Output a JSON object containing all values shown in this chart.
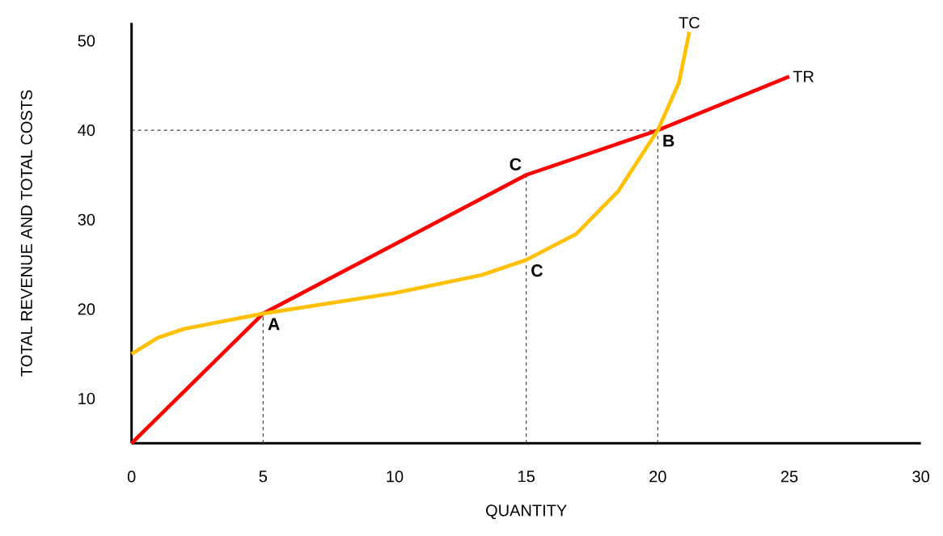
{
  "chart_data": {
    "type": "line",
    "xlabel": "QUANTITY",
    "ylabel": "TOTAL REVENUE AND TOTAL COSTS",
    "xlim": [
      0,
      30
    ],
    "ylim": [
      5,
      52
    ],
    "xticks": [
      0,
      5,
      10,
      15,
      20,
      25,
      30
    ],
    "yticks": [
      10,
      20,
      30,
      40,
      50
    ],
    "grid": false,
    "marker": "none",
    "line_style": "solid",
    "series": [
      {
        "name": "TR",
        "color": "#ff0000",
        "x": [
          0,
          5,
          15,
          20,
          25
        ],
        "values": [
          5,
          19.5,
          35,
          40,
          46
        ]
      },
      {
        "name": "TC",
        "color": "#ffc000",
        "x": [
          0,
          1,
          2,
          5,
          10,
          13.3,
          15,
          16.9,
          18.5,
          20,
          20.8,
          21.2
        ],
        "values": [
          15,
          16.8,
          17.8,
          19.5,
          21.8,
          23.8,
          25.5,
          28.4,
          33.2,
          40,
          45.3,
          51
        ]
      }
    ],
    "ref_lines": [
      {
        "axis": "y",
        "value": 40,
        "line_style": "dashed",
        "color": "#404040"
      },
      {
        "axis": "x",
        "value": 5,
        "line_style": "dashed",
        "color": "#404040"
      },
      {
        "axis": "x",
        "value": 15,
        "line_style": "dashed",
        "color": "#404040"
      },
      {
        "axis": "x",
        "value": 20,
        "line_style": "dashed",
        "color": "#404040"
      }
    ],
    "annotations": [
      {
        "text": "A",
        "x": 5,
        "y": 19.5
      },
      {
        "text": "B",
        "x": 20,
        "y": 40
      },
      {
        "text": "C",
        "x": 15,
        "y": 35
      },
      {
        "text": "C",
        "x": 15,
        "y": 25.5
      }
    ]
  }
}
